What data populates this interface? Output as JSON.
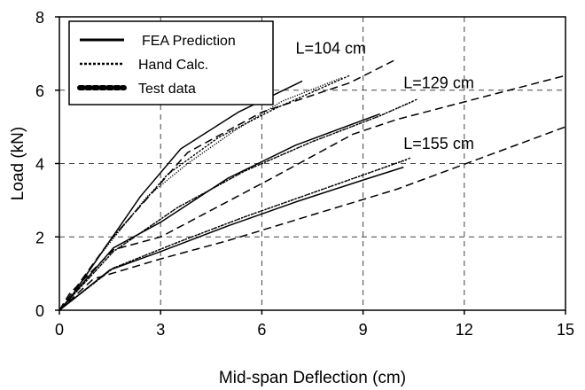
{
  "chart_data": {
    "type": "line",
    "xlabel": "Mid-span Deflection (cm)",
    "ylabel": "Load (kN)",
    "xlim": [
      0,
      15
    ],
    "ylim": [
      0,
      8
    ],
    "xticks": [
      0,
      3,
      6,
      9,
      12,
      15
    ],
    "yticks": [
      0,
      2,
      4,
      6,
      8
    ],
    "grid": "dashed",
    "legend_position": "top-left",
    "legend": [
      {
        "label": "FEA Prediction",
        "style": "solid"
      },
      {
        "label": "Hand Calc.",
        "style": "dense-dashed"
      },
      {
        "label": "Test data",
        "style": "dotted"
      }
    ],
    "annotations": [
      {
        "text": "L=104 cm",
        "x": 7.0,
        "y": 7.0
      },
      {
        "text": "L=129 cm",
        "x": 10.2,
        "y": 6.05
      },
      {
        "text": "L=155 cm",
        "x": 10.2,
        "y": 4.4
      }
    ],
    "series": [
      {
        "group": "L=104 cm",
        "style": "solid",
        "points": [
          [
            0,
            0
          ],
          [
            0.3,
            0.3
          ],
          [
            2.4,
            3.1
          ],
          [
            3.6,
            4.4
          ],
          [
            5.3,
            5.4
          ],
          [
            7.2,
            6.25
          ]
        ]
      },
      {
        "group": "L=104 cm",
        "style": "dense-dashed",
        "points": [
          [
            0,
            0
          ],
          [
            0.3,
            0.3
          ],
          [
            1.5,
            1.9
          ],
          [
            3.2,
            3.7
          ],
          [
            4.7,
            4.7
          ],
          [
            6.4,
            5.5
          ],
          [
            8.6,
            6.4
          ]
        ]
      },
      {
        "group": "L=104 cm",
        "style": "dotted",
        "points": [
          [
            0,
            0
          ],
          [
            0.3,
            0.3
          ],
          [
            1.2,
            1.5
          ],
          [
            2.6,
            3.1
          ],
          [
            3.8,
            4.0
          ],
          [
            5.2,
            4.9
          ],
          [
            6.6,
            5.7
          ],
          [
            8.4,
            6.35
          ]
        ]
      },
      {
        "group": "L=104 cm",
        "style": "long-dashed",
        "points": [
          [
            0,
            0
          ],
          [
            0.4,
            0.5
          ],
          [
            1.5,
            1.9
          ],
          [
            3.8,
            4.3
          ],
          [
            6.0,
            5.4
          ],
          [
            8.6,
            6.2
          ],
          [
            10.0,
            6.85
          ]
        ]
      },
      {
        "group": "L=129 cm",
        "style": "solid",
        "points": [
          [
            0,
            0
          ],
          [
            1.6,
            1.7
          ],
          [
            3.0,
            2.4
          ],
          [
            5.0,
            3.6
          ],
          [
            7.0,
            4.5
          ],
          [
            9.5,
            5.35
          ]
        ]
      },
      {
        "group": "L=129 cm",
        "style": "dense-dashed",
        "points": [
          [
            0,
            0
          ],
          [
            1.6,
            1.6
          ],
          [
            3.5,
            2.8
          ],
          [
            5.5,
            3.8
          ],
          [
            7.5,
            4.6
          ],
          [
            9.5,
            5.3
          ],
          [
            10.6,
            5.75
          ]
        ]
      },
      {
        "group": "L=129 cm",
        "style": "dotted",
        "points": [
          [
            0,
            0
          ],
          [
            1.6,
            1.6
          ],
          [
            3.5,
            2.8
          ],
          [
            5.5,
            3.8
          ],
          [
            7.5,
            4.6
          ],
          [
            9.5,
            5.3
          ],
          [
            10.5,
            5.7
          ]
        ]
      },
      {
        "group": "L=129 cm",
        "style": "long-dashed",
        "points": [
          [
            0,
            0
          ],
          [
            0.3,
            0.45
          ],
          [
            1.6,
            1.65
          ],
          [
            3.0,
            2.0
          ],
          [
            6.3,
            3.6
          ],
          [
            8.7,
            4.8
          ],
          [
            10.0,
            5.2
          ],
          [
            15.0,
            6.4
          ]
        ]
      },
      {
        "group": "L=155 cm",
        "style": "solid",
        "points": [
          [
            0,
            0
          ],
          [
            1.5,
            1.1
          ],
          [
            3.0,
            1.6
          ],
          [
            5.0,
            2.3
          ],
          [
            7.0,
            2.95
          ],
          [
            9.0,
            3.55
          ],
          [
            10.2,
            3.9
          ]
        ]
      },
      {
        "group": "L=155 cm",
        "style": "dense-dashed",
        "points": [
          [
            0,
            0
          ],
          [
            1.6,
            1.15
          ],
          [
            3.5,
            1.85
          ],
          [
            5.5,
            2.55
          ],
          [
            7.5,
            3.2
          ],
          [
            9.5,
            3.85
          ],
          [
            10.4,
            4.15
          ]
        ]
      },
      {
        "group": "L=155 cm",
        "style": "dotted",
        "points": [
          [
            0,
            0
          ],
          [
            1.6,
            1.15
          ],
          [
            3.5,
            1.85
          ],
          [
            5.5,
            2.55
          ],
          [
            7.5,
            3.2
          ],
          [
            9.5,
            3.85
          ],
          [
            10.3,
            4.1
          ]
        ]
      },
      {
        "group": "L=155 cm",
        "style": "long-dashed",
        "points": [
          [
            0,
            0
          ],
          [
            1.0,
            0.85
          ],
          [
            3.0,
            1.4
          ],
          [
            5.0,
            1.9
          ],
          [
            7.5,
            2.6
          ],
          [
            10.0,
            3.3
          ],
          [
            12.5,
            4.15
          ],
          [
            15.0,
            5.0
          ]
        ]
      }
    ]
  }
}
